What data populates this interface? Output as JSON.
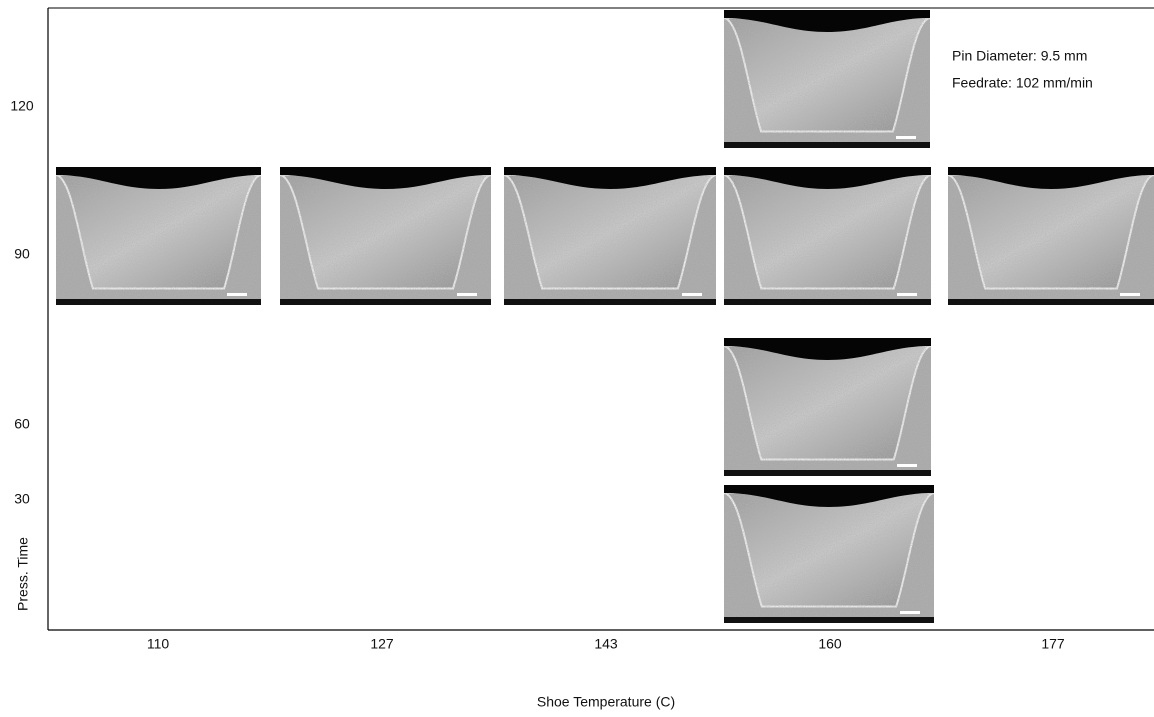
{
  "x_axis": {
    "label": "Shoe Temperature (C)",
    "ticks": [
      "110",
      "127",
      "143",
      "160",
      "177"
    ]
  },
  "y_axis": {
    "label": "Press. Time",
    "ticks": [
      "120",
      "90",
      "60",
      "30"
    ]
  },
  "annotation": [
    "Pin Diameter:  9.5 mm",
    "Feedrate: 102 mm/min"
  ]
}
